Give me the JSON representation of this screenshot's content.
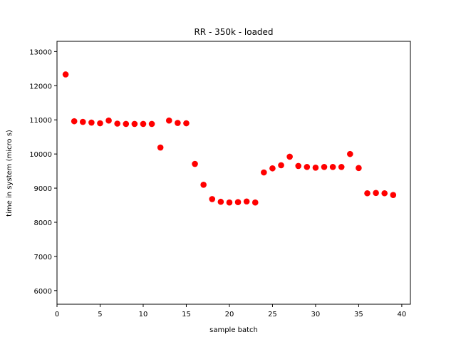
{
  "chart_data": {
    "type": "scatter",
    "title": "RR - 350k - loaded",
    "xlabel": "sample batch",
    "ylabel": "time in system (micro s)",
    "xlim": [
      0,
      41
    ],
    "ylim": [
      5600,
      13300
    ],
    "xticks": [
      0,
      5,
      10,
      15,
      20,
      25,
      30,
      35,
      40
    ],
    "yticks": [
      6000,
      7000,
      8000,
      9000,
      10000,
      11000,
      12000,
      13000
    ],
    "grid": false,
    "marker_color": "#ff0000",
    "series": [
      {
        "x": [
          1,
          2,
          3,
          4,
          5,
          6,
          7,
          8,
          9,
          10,
          11,
          12,
          13,
          14,
          15,
          16,
          17,
          18,
          19,
          20,
          21,
          22,
          23,
          24,
          25,
          26,
          27,
          28,
          29,
          30,
          31,
          32,
          33,
          34,
          35,
          36,
          37,
          38,
          39
        ],
        "y": [
          12330,
          10960,
          10940,
          10920,
          10900,
          10980,
          10890,
          10880,
          10880,
          10880,
          10880,
          10190,
          10980,
          10910,
          10900,
          9710,
          9100,
          8680,
          8600,
          8580,
          8590,
          8610,
          8580,
          9460,
          9580,
          9670,
          9920,
          9650,
          9620,
          9600,
          9620,
          9620,
          9620,
          10000,
          9590,
          8850,
          8860,
          8850,
          8800
        ]
      }
    ]
  }
}
